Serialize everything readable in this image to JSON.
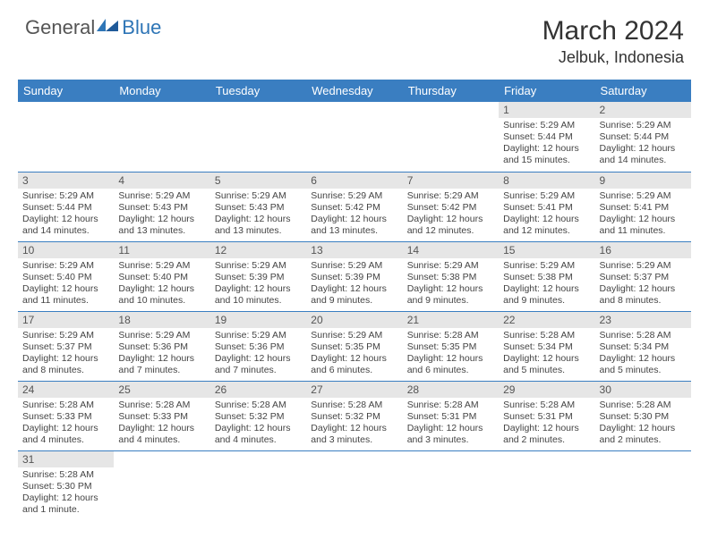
{
  "brand": {
    "general": "General",
    "blue": "Blue",
    "accent_color": "#2e75b6"
  },
  "title": {
    "month": "March 2024",
    "location": "Jelbuk, Indonesia"
  },
  "colors": {
    "header_bg": "#3a7ec1",
    "header_text": "#ffffff",
    "daynum_bg": "#e6e6e6",
    "body_text": "#444444",
    "border": "#3a7ec1"
  },
  "daysOfWeek": [
    "Sunday",
    "Monday",
    "Tuesday",
    "Wednesday",
    "Thursday",
    "Friday",
    "Saturday"
  ],
  "startOffset": 5,
  "cells": [
    {
      "n": "1",
      "sr": "Sunrise: 5:29 AM",
      "ss": "Sunset: 5:44 PM",
      "dl": "Daylight: 12 hours and 15 minutes."
    },
    {
      "n": "2",
      "sr": "Sunrise: 5:29 AM",
      "ss": "Sunset: 5:44 PM",
      "dl": "Daylight: 12 hours and 14 minutes."
    },
    {
      "n": "3",
      "sr": "Sunrise: 5:29 AM",
      "ss": "Sunset: 5:44 PM",
      "dl": "Daylight: 12 hours and 14 minutes."
    },
    {
      "n": "4",
      "sr": "Sunrise: 5:29 AM",
      "ss": "Sunset: 5:43 PM",
      "dl": "Daylight: 12 hours and 13 minutes."
    },
    {
      "n": "5",
      "sr": "Sunrise: 5:29 AM",
      "ss": "Sunset: 5:43 PM",
      "dl": "Daylight: 12 hours and 13 minutes."
    },
    {
      "n": "6",
      "sr": "Sunrise: 5:29 AM",
      "ss": "Sunset: 5:42 PM",
      "dl": "Daylight: 12 hours and 13 minutes."
    },
    {
      "n": "7",
      "sr": "Sunrise: 5:29 AM",
      "ss": "Sunset: 5:42 PM",
      "dl": "Daylight: 12 hours and 12 minutes."
    },
    {
      "n": "8",
      "sr": "Sunrise: 5:29 AM",
      "ss": "Sunset: 5:41 PM",
      "dl": "Daylight: 12 hours and 12 minutes."
    },
    {
      "n": "9",
      "sr": "Sunrise: 5:29 AM",
      "ss": "Sunset: 5:41 PM",
      "dl": "Daylight: 12 hours and 11 minutes."
    },
    {
      "n": "10",
      "sr": "Sunrise: 5:29 AM",
      "ss": "Sunset: 5:40 PM",
      "dl": "Daylight: 12 hours and 11 minutes."
    },
    {
      "n": "11",
      "sr": "Sunrise: 5:29 AM",
      "ss": "Sunset: 5:40 PM",
      "dl": "Daylight: 12 hours and 10 minutes."
    },
    {
      "n": "12",
      "sr": "Sunrise: 5:29 AM",
      "ss": "Sunset: 5:39 PM",
      "dl": "Daylight: 12 hours and 10 minutes."
    },
    {
      "n": "13",
      "sr": "Sunrise: 5:29 AM",
      "ss": "Sunset: 5:39 PM",
      "dl": "Daylight: 12 hours and 9 minutes."
    },
    {
      "n": "14",
      "sr": "Sunrise: 5:29 AM",
      "ss": "Sunset: 5:38 PM",
      "dl": "Daylight: 12 hours and 9 minutes."
    },
    {
      "n": "15",
      "sr": "Sunrise: 5:29 AM",
      "ss": "Sunset: 5:38 PM",
      "dl": "Daylight: 12 hours and 9 minutes."
    },
    {
      "n": "16",
      "sr": "Sunrise: 5:29 AM",
      "ss": "Sunset: 5:37 PM",
      "dl": "Daylight: 12 hours and 8 minutes."
    },
    {
      "n": "17",
      "sr": "Sunrise: 5:29 AM",
      "ss": "Sunset: 5:37 PM",
      "dl": "Daylight: 12 hours and 8 minutes."
    },
    {
      "n": "18",
      "sr": "Sunrise: 5:29 AM",
      "ss": "Sunset: 5:36 PM",
      "dl": "Daylight: 12 hours and 7 minutes."
    },
    {
      "n": "19",
      "sr": "Sunrise: 5:29 AM",
      "ss": "Sunset: 5:36 PM",
      "dl": "Daylight: 12 hours and 7 minutes."
    },
    {
      "n": "20",
      "sr": "Sunrise: 5:29 AM",
      "ss": "Sunset: 5:35 PM",
      "dl": "Daylight: 12 hours and 6 minutes."
    },
    {
      "n": "21",
      "sr": "Sunrise: 5:28 AM",
      "ss": "Sunset: 5:35 PM",
      "dl": "Daylight: 12 hours and 6 minutes."
    },
    {
      "n": "22",
      "sr": "Sunrise: 5:28 AM",
      "ss": "Sunset: 5:34 PM",
      "dl": "Daylight: 12 hours and 5 minutes."
    },
    {
      "n": "23",
      "sr": "Sunrise: 5:28 AM",
      "ss": "Sunset: 5:34 PM",
      "dl": "Daylight: 12 hours and 5 minutes."
    },
    {
      "n": "24",
      "sr": "Sunrise: 5:28 AM",
      "ss": "Sunset: 5:33 PM",
      "dl": "Daylight: 12 hours and 4 minutes."
    },
    {
      "n": "25",
      "sr": "Sunrise: 5:28 AM",
      "ss": "Sunset: 5:33 PM",
      "dl": "Daylight: 12 hours and 4 minutes."
    },
    {
      "n": "26",
      "sr": "Sunrise: 5:28 AM",
      "ss": "Sunset: 5:32 PM",
      "dl": "Daylight: 12 hours and 4 minutes."
    },
    {
      "n": "27",
      "sr": "Sunrise: 5:28 AM",
      "ss": "Sunset: 5:32 PM",
      "dl": "Daylight: 12 hours and 3 minutes."
    },
    {
      "n": "28",
      "sr": "Sunrise: 5:28 AM",
      "ss": "Sunset: 5:31 PM",
      "dl": "Daylight: 12 hours and 3 minutes."
    },
    {
      "n": "29",
      "sr": "Sunrise: 5:28 AM",
      "ss": "Sunset: 5:31 PM",
      "dl": "Daylight: 12 hours and 2 minutes."
    },
    {
      "n": "30",
      "sr": "Sunrise: 5:28 AM",
      "ss": "Sunset: 5:30 PM",
      "dl": "Daylight: 12 hours and 2 minutes."
    },
    {
      "n": "31",
      "sr": "Sunrise: 5:28 AM",
      "ss": "Sunset: 5:30 PM",
      "dl": "Daylight: 12 hours and 1 minute."
    }
  ]
}
